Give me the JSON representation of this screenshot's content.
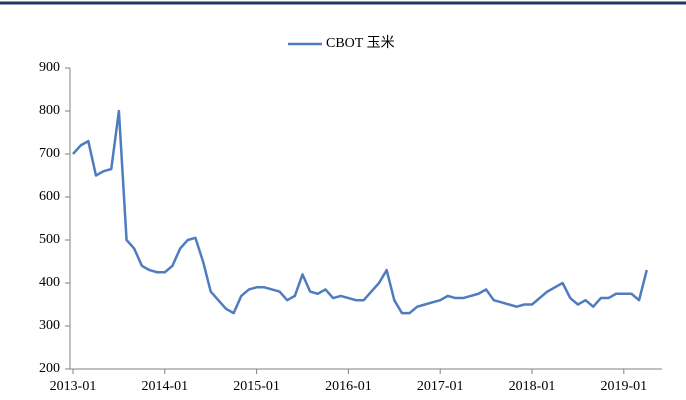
{
  "chart_data": {
    "type": "line",
    "x": [
      "2013-01",
      "2013-02",
      "2013-03",
      "2013-04",
      "2013-05",
      "2013-06",
      "2013-07",
      "2013-08",
      "2013-09",
      "2013-10",
      "2013-11",
      "2013-12",
      "2014-01",
      "2014-02",
      "2014-03",
      "2014-04",
      "2014-05",
      "2014-06",
      "2014-07",
      "2014-08",
      "2014-09",
      "2014-10",
      "2014-11",
      "2014-12",
      "2015-01",
      "2015-02",
      "2015-03",
      "2015-04",
      "2015-05",
      "2015-06",
      "2015-07",
      "2015-08",
      "2015-09",
      "2015-10",
      "2015-11",
      "2015-12",
      "2016-01",
      "2016-02",
      "2016-03",
      "2016-04",
      "2016-05",
      "2016-06",
      "2016-07",
      "2016-08",
      "2016-09",
      "2016-10",
      "2016-11",
      "2016-12",
      "2017-01",
      "2017-02",
      "2017-03",
      "2017-04",
      "2017-05",
      "2017-06",
      "2017-07",
      "2017-08",
      "2017-09",
      "2017-10",
      "2017-11",
      "2017-12",
      "2018-01",
      "2018-02",
      "2018-03",
      "2018-04",
      "2018-05",
      "2018-06",
      "2018-07",
      "2018-08",
      "2018-09",
      "2018-10",
      "2018-11",
      "2018-12",
      "2019-01",
      "2019-02",
      "2019-03",
      "2019-04"
    ],
    "series": [
      {
        "name": "CBOT 玉米",
        "color": "#4f7cbf",
        "values": [
          700,
          720,
          730,
          650,
          660,
          665,
          800,
          500,
          480,
          440,
          430,
          425,
          425,
          440,
          480,
          500,
          505,
          450,
          380,
          360,
          340,
          330,
          370,
          385,
          390,
          390,
          385,
          380,
          360,
          370,
          420,
          380,
          375,
          385,
          365,
          370,
          365,
          360,
          360,
          380,
          400,
          430,
          360,
          330,
          330,
          345,
          350,
          355,
          360,
          370,
          365,
          365,
          370,
          375,
          385,
          360,
          355,
          350,
          345,
          350,
          350,
          365,
          380,
          390,
          400,
          365,
          350,
          360,
          345,
          365,
          365,
          375,
          375,
          375,
          360,
          430
        ]
      }
    ],
    "xticks": [
      "2013-01",
      "2014-01",
      "2015-01",
      "2016-01",
      "2017-01",
      "2018-01",
      "2019-01"
    ],
    "ylim": [
      200,
      900
    ],
    "yticks": [
      200,
      300,
      400,
      500,
      600,
      700,
      800,
      900
    ],
    "legend": "top"
  }
}
